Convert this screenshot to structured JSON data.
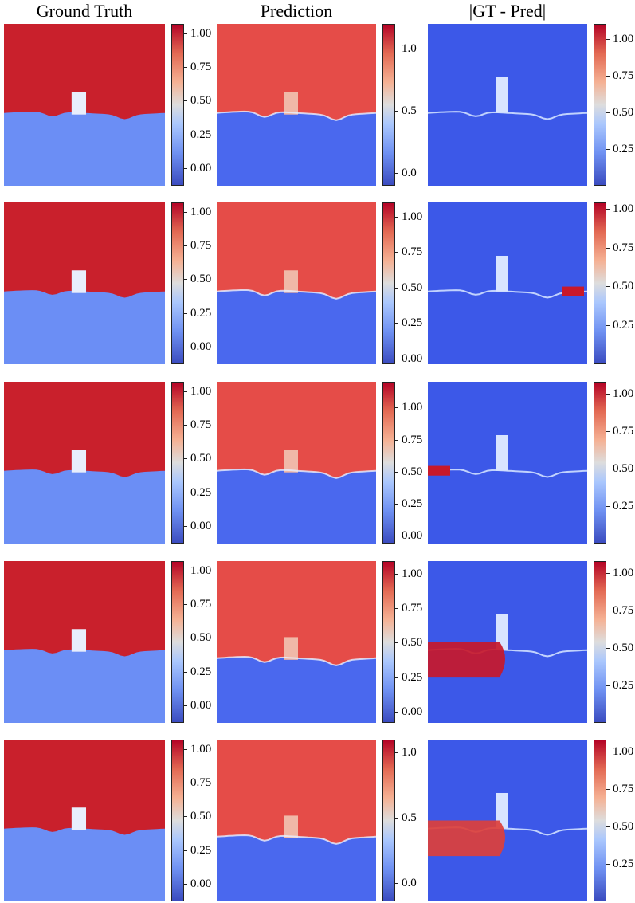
{
  "column_titles": [
    "Ground Truth",
    "Prediction",
    "|GT - Pred|"
  ],
  "chart_data": {
    "type": "heatmap",
    "colormap": "coolwarm",
    "layout": "5 rows x 3 columns of heatmaps, each with a colorbar to its right",
    "rows": [
      {
        "ground_truth": {
          "interface_y": 0.55,
          "colorbar": {
            "range": [
              -0.13,
              1.07
            ],
            "ticks": [
              "0.00",
              "0.25",
              "0.50",
              "0.75",
              "1.00"
            ],
            "tick_values": [
              0.0,
              0.25,
              0.5,
              0.75,
              1.0
            ]
          }
        },
        "prediction": {
          "interface_y": 0.55,
          "colorbar": {
            "range": [
              -0.1,
              1.2
            ],
            "ticks": [
              "0.0",
              "0.5",
              "1.0"
            ],
            "tick_values": [
              0.0,
              0.5,
              1.0
            ]
          }
        },
        "error": {
          "colorbar": {
            "range": [
              0.0,
              1.1
            ],
            "ticks": [
              "0.25",
              "0.50",
              "0.75",
              "1.00"
            ],
            "tick_values": [
              0.25,
              0.5,
              0.75,
              1.0
            ]
          }
        }
      },
      {
        "ground_truth": {
          "interface_y": 0.55,
          "colorbar": {
            "range": [
              -0.13,
              1.07
            ],
            "ticks": [
              "0.00",
              "0.25",
              "0.50",
              "0.75",
              "1.00"
            ],
            "tick_values": [
              0.0,
              0.25,
              0.5,
              0.75,
              1.0
            ]
          }
        },
        "prediction": {
          "interface_y": 0.55,
          "colorbar": {
            "range": [
              -0.04,
              1.1
            ],
            "ticks": [
              "0.00",
              "0.25",
              "0.50",
              "0.75",
              "1.00"
            ],
            "tick_values": [
              0.0,
              0.25,
              0.5,
              0.75,
              1.0
            ]
          }
        },
        "error": {
          "colorbar": {
            "range": [
              0.0,
              1.04
            ],
            "ticks": [
              "0.25",
              "0.50",
              "0.75",
              "1.00"
            ],
            "tick_values": [
              0.25,
              0.5,
              0.75,
              1.0
            ]
          }
        }
      },
      {
        "ground_truth": {
          "interface_y": 0.55,
          "colorbar": {
            "range": [
              -0.13,
              1.07
            ],
            "ticks": [
              "0.00",
              "0.25",
              "0.50",
              "0.75",
              "1.00"
            ],
            "tick_values": [
              0.0,
              0.25,
              0.5,
              0.75,
              1.0
            ]
          }
        },
        "prediction": {
          "interface_y": 0.55,
          "colorbar": {
            "range": [
              -0.06,
              1.2
            ],
            "ticks": [
              "0.00",
              "0.25",
              "0.50",
              "0.75",
              "1.00"
            ],
            "tick_values": [
              0.0,
              0.25,
              0.5,
              0.75,
              1.0
            ]
          }
        },
        "error": {
          "colorbar": {
            "range": [
              0.0,
              1.08
            ],
            "ticks": [
              "0.25",
              "0.50",
              "0.75",
              "1.00"
            ],
            "tick_values": [
              0.25,
              0.5,
              0.75,
              1.0
            ]
          }
        }
      },
      {
        "ground_truth": {
          "interface_y": 0.55,
          "colorbar": {
            "range": [
              -0.13,
              1.07
            ],
            "ticks": [
              "0.00",
              "0.25",
              "0.50",
              "0.75",
              "1.00"
            ],
            "tick_values": [
              0.0,
              0.25,
              0.5,
              0.75,
              1.0
            ]
          }
        },
        "prediction": {
          "interface_y": 0.6,
          "colorbar": {
            "range": [
              -0.08,
              1.09
            ],
            "ticks": [
              "0.00",
              "0.25",
              "0.50",
              "0.75",
              "1.00"
            ],
            "tick_values": [
              0.0,
              0.25,
              0.5,
              0.75,
              1.0
            ]
          }
        },
        "error": {
          "colorbar": {
            "range": [
              0.0,
              1.08
            ],
            "ticks": [
              "0.25",
              "0.50",
              "0.75",
              "1.00"
            ],
            "tick_values": [
              0.25,
              0.5,
              0.75,
              1.0
            ]
          }
        }
      },
      {
        "ground_truth": {
          "interface_y": 0.55,
          "colorbar": {
            "range": [
              -0.13,
              1.07
            ],
            "ticks": [
              "0.00",
              "0.25",
              "0.50",
              "0.75",
              "1.00"
            ],
            "tick_values": [
              0.0,
              0.25,
              0.5,
              0.75,
              1.0
            ]
          }
        },
        "prediction": {
          "interface_y": 0.6,
          "colorbar": {
            "range": [
              -0.14,
              1.1
            ],
            "ticks": [
              "0.0",
              "0.5",
              "1.0"
            ],
            "tick_values": [
              0.0,
              0.5,
              1.0
            ]
          }
        },
        "error": {
          "colorbar": {
            "range": [
              0.0,
              1.08
            ],
            "ticks": [
              "0.25",
              "0.50",
              "0.75",
              "1.00"
            ],
            "tick_values": [
              0.25,
              0.5,
              0.75,
              1.0
            ]
          }
        }
      }
    ]
  }
}
